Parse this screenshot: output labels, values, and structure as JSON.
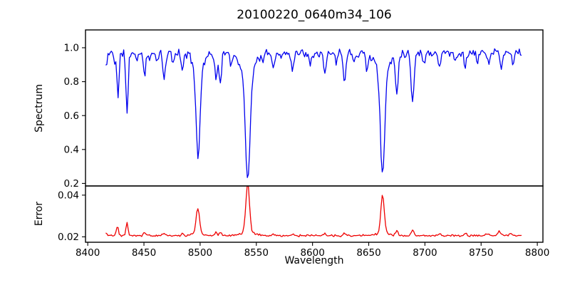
{
  "figure": {
    "title": "20100220_0640m34_106",
    "background_color": "#ffffff",
    "frame_color": "#000000"
  },
  "chart_data": {
    "type": "line",
    "title": "20100220_0640m34_106",
    "xlabel": "Wavelength",
    "xlim": [
      8398,
      8805
    ],
    "xticks": [
      8400,
      8450,
      8500,
      8550,
      8600,
      8650,
      8700,
      8750,
      8800
    ],
    "x_data_range": [
      8416,
      8786
    ],
    "sample_step": 1.0,
    "legend": "none",
    "grid": false,
    "panels": [
      {
        "name": "spectrum",
        "ylabel": "Spectrum",
        "ylim": [
          0.185,
          1.105
        ],
        "yticks": [
          0.2,
          0.4,
          0.6,
          0.8,
          1.0
        ],
        "ytick_decimals": 1,
        "line_color": "#0000ee",
        "description": "normalized stellar spectrum, noisy continuum near 0.97 with absorption lines; deepest are the Ca II triplet at 8498, 8542, 8662",
        "continuum": 0.97,
        "noise_amplitude": 0.03,
        "seed": 11,
        "absorption_lines": [
          [
            8416.5,
            0.09,
            0.8
          ],
          [
            8424.0,
            0.05,
            0.8
          ],
          [
            8427.0,
            0.27,
            0.9
          ],
          [
            8435.0,
            0.36,
            1.0
          ],
          [
            8444.0,
            0.05,
            0.8
          ],
          [
            8450.5,
            0.13,
            1.0
          ],
          [
            8455.0,
            0.06,
            0.8
          ],
          [
            8462.0,
            0.05,
            0.8
          ],
          [
            8468.0,
            0.15,
            1.3
          ],
          [
            8476.0,
            0.06,
            0.9
          ],
          [
            8484.0,
            0.11,
            1.0
          ],
          [
            8498.2,
            0.52,
            1.7
          ],
          [
            8498.2,
            0.1,
            4.5
          ],
          [
            8514.2,
            0.17,
            1.1
          ],
          [
            8518.0,
            0.17,
            1.1
          ],
          [
            8527.0,
            0.07,
            0.9
          ],
          [
            8542.3,
            0.62,
            2.0
          ],
          [
            8542.3,
            0.13,
            6.0
          ],
          [
            8556.0,
            0.05,
            0.8
          ],
          [
            8565.0,
            0.1,
            1.0
          ],
          [
            8572.0,
            0.05,
            0.8
          ],
          [
            8582.0,
            0.1,
            1.0
          ],
          [
            8598.0,
            0.06,
            0.9
          ],
          [
            8611.0,
            0.13,
            1.1
          ],
          [
            8621.0,
            0.06,
            0.8
          ],
          [
            8628.5,
            0.15,
            1.2
          ],
          [
            8637.0,
            0.05,
            0.8
          ],
          [
            8648.5,
            0.1,
            1.0
          ],
          [
            8662.3,
            0.6,
            1.9
          ],
          [
            8662.3,
            0.12,
            5.5
          ],
          [
            8675.0,
            0.23,
            1.2
          ],
          [
            8689.0,
            0.27,
            1.4
          ],
          [
            8699.0,
            0.07,
            0.9
          ],
          [
            8713.0,
            0.08,
            1.0
          ],
          [
            8727.0,
            0.06,
            0.9
          ],
          [
            8736.0,
            0.08,
            1.0
          ],
          [
            8747.0,
            0.06,
            0.9
          ],
          [
            8757.0,
            0.07,
            0.9
          ],
          [
            8768.0,
            0.09,
            1.1
          ],
          [
            8778.0,
            0.06,
            0.9
          ]
        ]
      },
      {
        "name": "error",
        "ylabel": "Error",
        "ylim": [
          0.0174,
          0.0444
        ],
        "yticks": [
          0.02,
          0.04
        ],
        "ytick_decimals": 2,
        "line_color": "#ee0000",
        "description": "error spectrum, baseline near 0.0206 with peaks at the strong absorption lines",
        "baseline": 0.0206,
        "noise_amplitude": 0.0006,
        "seed": 5,
        "emission_peaks": [
          [
            8416.5,
            0.0012,
            0.8
          ],
          [
            8426.4,
            0.0048,
            0.9
          ],
          [
            8434.9,
            0.006,
            0.9
          ],
          [
            8450.5,
            0.0015,
            1.0
          ],
          [
            8468.0,
            0.0012,
            1.2
          ],
          [
            8484.0,
            0.0008,
            1.0
          ],
          [
            8497.9,
            0.0122,
            1.5
          ],
          [
            8497.9,
            0.001,
            5.0
          ],
          [
            8514.0,
            0.0018,
            1.0
          ],
          [
            8518.0,
            0.0016,
            1.0
          ],
          [
            8542.3,
            0.0238,
            1.6
          ],
          [
            8542.3,
            0.0015,
            6.0
          ],
          [
            8565.0,
            0.0008,
            1.0
          ],
          [
            8582.0,
            0.0007,
            1.0
          ],
          [
            8611.0,
            0.0009,
            1.0
          ],
          [
            8628.0,
            0.001,
            1.0
          ],
          [
            8662.3,
            0.0184,
            1.5
          ],
          [
            8662.3,
            0.001,
            6.0
          ],
          [
            8675.0,
            0.0024,
            1.1
          ],
          [
            8689.0,
            0.0026,
            1.2
          ],
          [
            8713.0,
            0.0008,
            1.0
          ],
          [
            8736.0,
            0.0012,
            1.2
          ],
          [
            8755.0,
            0.001,
            1.2
          ],
          [
            8766.0,
            0.0018,
            1.5
          ],
          [
            8776.0,
            0.001,
            1.0
          ]
        ]
      }
    ]
  }
}
